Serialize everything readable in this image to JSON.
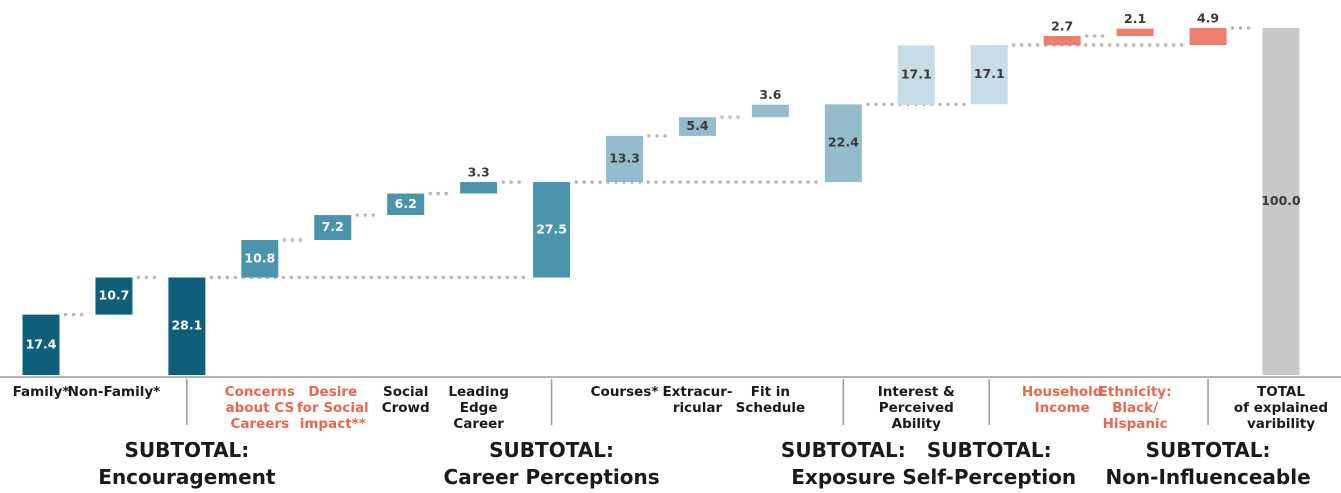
{
  "chart_data": {
    "type": "waterfall",
    "categories": [
      [
        "Family*"
      ],
      [
        "Non-Family*"
      ],
      [
        "SUBTOTAL:",
        "Encouragement"
      ],
      [
        "Concerns",
        "about CS",
        "Careers"
      ],
      [
        "Desire",
        "for Social",
        "impact**"
      ],
      [
        "Social",
        "Crowd"
      ],
      [
        "Leading",
        "Edge",
        "Career"
      ],
      [
        "SUBTOTAL:",
        "Career Perceptions"
      ],
      [
        "Courses*"
      ],
      [
        "Extracur-",
        "ricular"
      ],
      [
        "Fit in",
        "Schedule"
      ],
      [
        "SUBTOTAL:",
        "Exposure"
      ],
      [
        "Interest &",
        "Perceived",
        "Ability"
      ],
      [
        "SUBTOTAL:",
        "Self-Perception"
      ],
      [
        "Household",
        "Income"
      ],
      [
        "Ethnicity:",
        "Black/",
        "Hispanic"
      ],
      [
        "SUBTOTAL:",
        "Non-Influenceable"
      ],
      [
        "TOTAL",
        "of explained",
        "varibility"
      ]
    ],
    "values": [
      17.4,
      10.7,
      28.1,
      10.8,
      7.2,
      6.2,
      3.3,
      27.5,
      13.3,
      5.4,
      3.6,
      22.4,
      17.1,
      17.1,
      2.7,
      2.1,
      4.9,
      100
    ],
    "value_labels": [
      "17.4",
      "10.7",
      "28.1",
      "10.8",
      "7.2",
      "6.2",
      "3.3",
      "27.5",
      "13.3",
      "5.4",
      "3.6",
      "22.4",
      "17.1",
      "17.1",
      "2.7",
      "2.1",
      "4.9",
      "100.0"
    ],
    "measure": [
      "relative",
      "relative",
      "subtotal",
      "relative",
      "relative",
      "relative",
      "relative",
      "subtotal",
      "relative",
      "relative",
      "relative",
      "subtotal",
      "relative",
      "subtotal",
      "relative",
      "relative",
      "subtotal",
      "total"
    ],
    "colors": [
      "#0f5f7a",
      "#0f5f7a",
      "#0f5f7a",
      "#4a95ad",
      "#4a95ad",
      "#4a95ad",
      "#4a95ad",
      "#4a95ad",
      "#94bccd",
      "#94bccd",
      "#94bccd",
      "#94bccd",
      "#c6dce6",
      "#c6dce6",
      "#f07e6e",
      "#f07e6e",
      "#f07e6e",
      "#c8c8c8"
    ],
    "label_colors": [
      "#1a1a1a",
      "#1a1a1a",
      "#1a1a1a",
      "#e8674e",
      "#e8674e",
      "#1a1a1a",
      "#1a1a1a",
      "#1a1a1a",
      "#1a1a1a",
      "#1a1a1a",
      "#1a1a1a",
      "#1a1a1a",
      "#1a1a1a",
      "#1a1a1a",
      "#e8674e",
      "#e8674e",
      "#1a1a1a",
      "#1a1a1a"
    ]
  }
}
